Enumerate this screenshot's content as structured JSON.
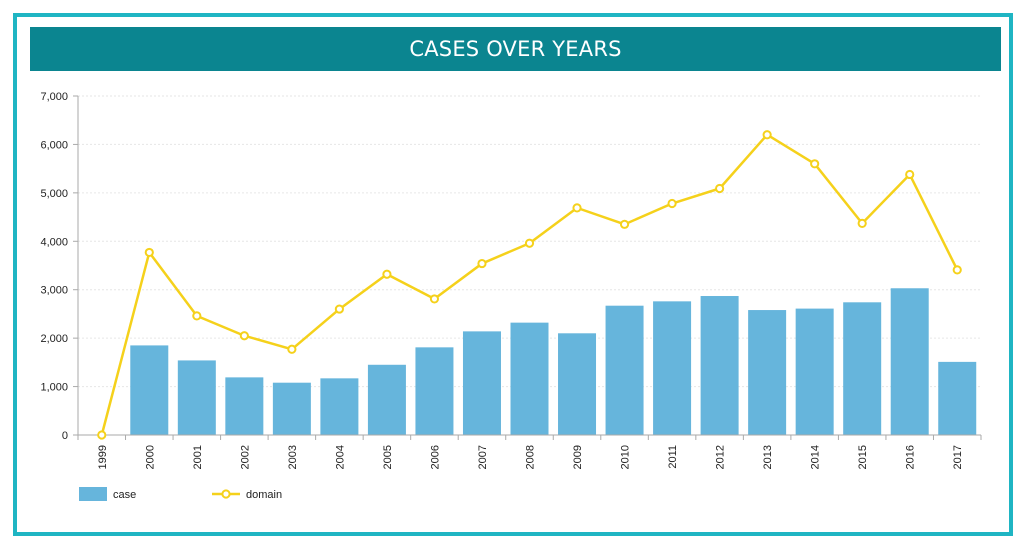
{
  "chart_data": {
    "type": "bar",
    "title": "CASES OVER YEARS",
    "xlabel": "",
    "ylabel": "",
    "ylim": [
      0,
      7000
    ],
    "yticks": [
      "0",
      "1,000",
      "2,000",
      "3,000",
      "4,000",
      "5,000",
      "6,000",
      "7,000"
    ],
    "ytick_values": [
      0,
      1000,
      2000,
      3000,
      4000,
      5000,
      6000,
      7000
    ],
    "categories": [
      "1999",
      "2000",
      "2001",
      "2002",
      "2003",
      "2004",
      "2005",
      "2006",
      "2007",
      "2008",
      "2009",
      "2010",
      "2011",
      "2012",
      "2013",
      "2014",
      "2015",
      "2016",
      "2017"
    ],
    "series": [
      {
        "name": "case",
        "type": "bar",
        "color": "#66b5dc",
        "values": [
          0,
          1850,
          1540,
          1190,
          1080,
          1170,
          1450,
          1810,
          2140,
          2320,
          2100,
          2670,
          2760,
          2870,
          2580,
          2610,
          2740,
          3030,
          1510
        ]
      },
      {
        "name": "domain",
        "type": "line",
        "color": "#f5d11b",
        "values": [
          0,
          3770,
          2460,
          2050,
          1770,
          2600,
          3320,
          2810,
          3540,
          3960,
          4690,
          4350,
          4780,
          5090,
          6200,
          5600,
          4370,
          5380,
          3410
        ]
      }
    ],
    "grid": true,
    "legend": "bottom-left"
  },
  "colors": {
    "frame_border": "#1fb5c3",
    "title_background": "#0b8590",
    "title_text": "#ffffff",
    "grid": "#e6e6e6",
    "axis": "#aaaaaa"
  }
}
